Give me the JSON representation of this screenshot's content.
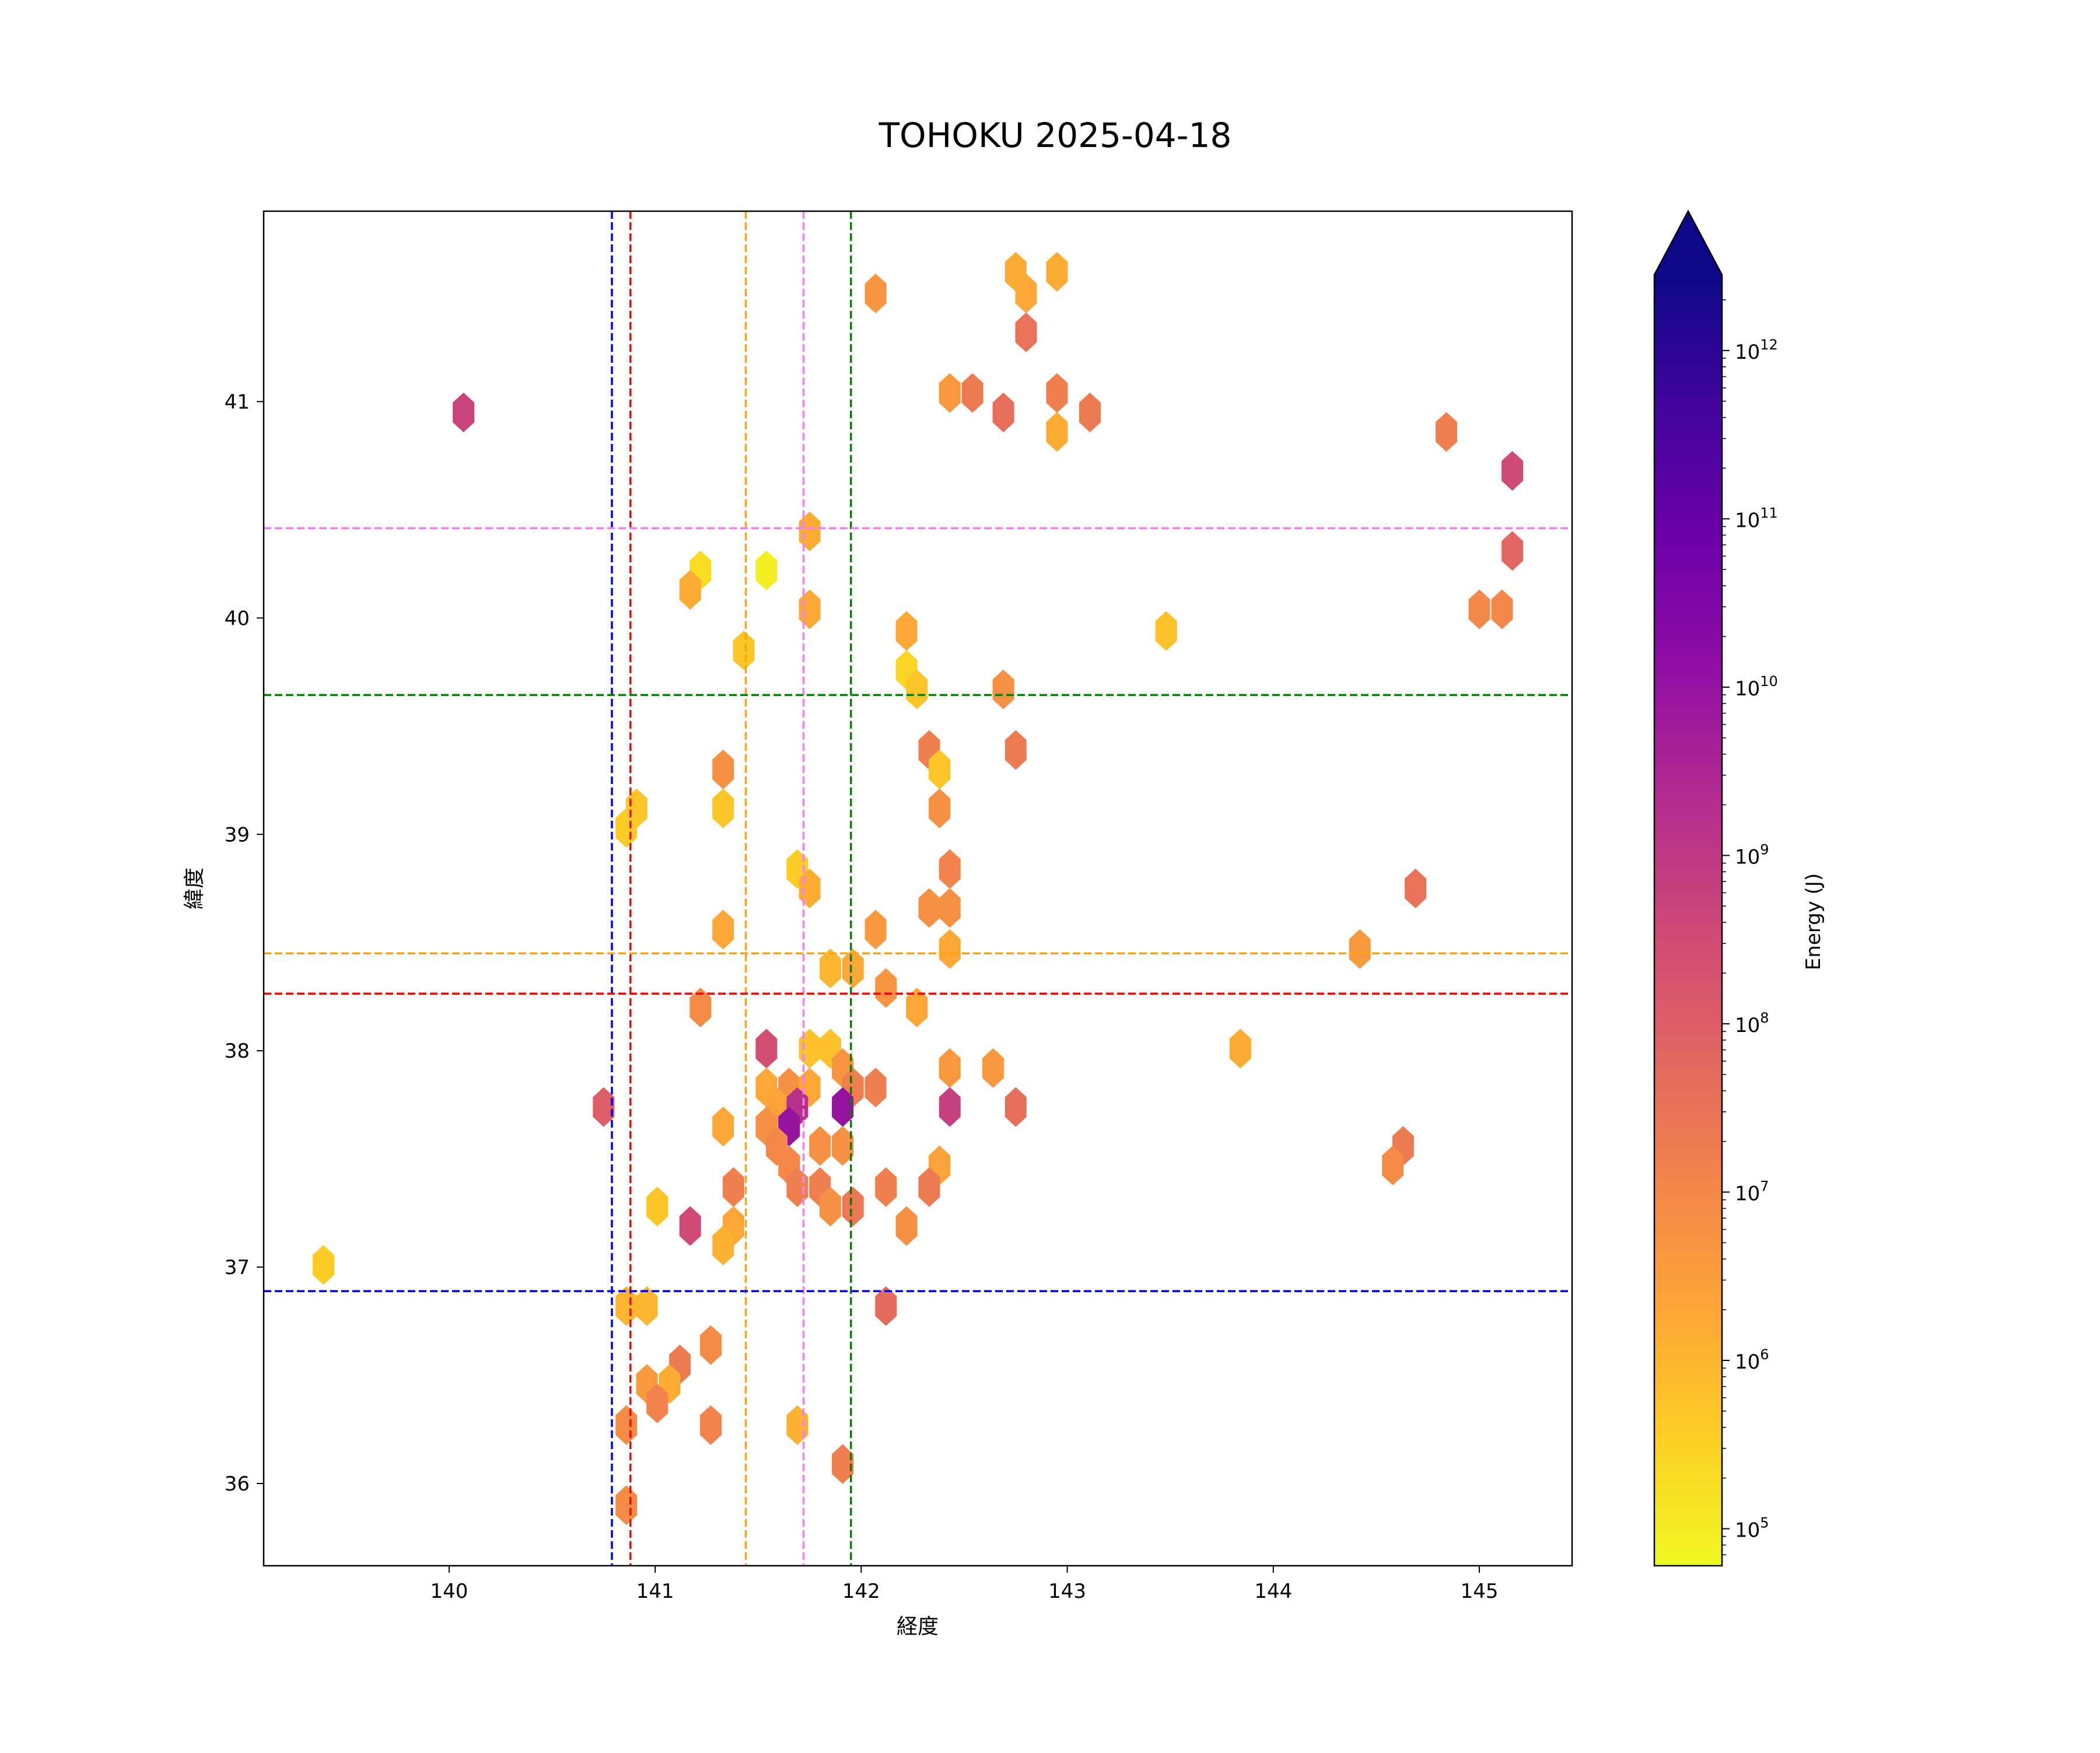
{
  "chart_data": {
    "type": "hexbin",
    "title": "TOHOKU 2025-04-18",
    "xlabel": "経度",
    "ylabel": "緯度",
    "xlim": [
      139.1,
      145.45
    ],
    "ylim": [
      35.62,
      41.88
    ],
    "xticks": [
      140,
      141,
      142,
      143,
      144,
      145
    ],
    "yticks": [
      36,
      37,
      38,
      39,
      40,
      41
    ],
    "grid": false,
    "colormap": "plasma_r",
    "colorbar": {
      "label": "Energy (J)",
      "scale": "log",
      "range_log10": [
        4.78,
        12.45
      ],
      "extend": "max",
      "tick_exponents": [
        5,
        6,
        7,
        8,
        9,
        10,
        11,
        12
      ],
      "tick_base": "10"
    },
    "reference_lines": {
      "vertical": [
        {
          "x": 140.79,
          "color": "#0000ff"
        },
        {
          "x": 140.88,
          "color": "#ff0000"
        },
        {
          "x": 141.44,
          "color": "#ffa500"
        },
        {
          "x": 141.72,
          "color": "#ee82ee"
        },
        {
          "x": 141.95,
          "color": "#008000"
        }
      ],
      "horizontal": [
        {
          "y": 40.415,
          "color": "#ee82ee"
        },
        {
          "y": 39.644,
          "color": "#008000"
        },
        {
          "y": 38.45,
          "color": "#ffa500"
        },
        {
          "y": 38.264,
          "color": "#ff0000"
        },
        {
          "y": 36.889,
          "color": "#0000ff"
        }
      ]
    },
    "bins_lon_lat_log10E": [
      [
        140.07,
        40.95,
        8.7
      ],
      [
        142.07,
        41.5,
        6.7
      ],
      [
        142.75,
        41.6,
        6.2
      ],
      [
        142.95,
        41.6,
        6.2
      ],
      [
        142.8,
        41.5,
        6.3
      ],
      [
        142.8,
        41.32,
        7.5
      ],
      [
        142.43,
        41.04,
        6.6
      ],
      [
        142.54,
        41.04,
        7.3
      ],
      [
        142.69,
        40.95,
        7.6
      ],
      [
        142.95,
        41.04,
        7.2
      ],
      [
        143.11,
        40.95,
        7.3
      ],
      [
        142.95,
        40.86,
        6.2
      ],
      [
        144.84,
        40.86,
        7.2
      ],
      [
        145.16,
        40.68,
        8.5
      ],
      [
        145.16,
        40.31,
        7.8
      ],
      [
        145.0,
        40.04,
        7.0
      ],
      [
        145.11,
        40.04,
        7.0
      ],
      [
        141.75,
        40.4,
        6.2
      ],
      [
        141.22,
        40.22,
        5.3
      ],
      [
        141.54,
        40.22,
        5.0
      ],
      [
        141.17,
        40.13,
        6.2
      ],
      [
        141.75,
        40.04,
        6.3
      ],
      [
        142.22,
        39.94,
        6.3
      ],
      [
        143.48,
        39.94,
        5.8
      ],
      [
        141.43,
        39.85,
        5.7
      ],
      [
        142.22,
        39.76,
        5.4
      ],
      [
        142.27,
        39.67,
        5.7
      ],
      [
        142.69,
        39.67,
        6.8
      ],
      [
        142.33,
        39.39,
        7.2
      ],
      [
        142.75,
        39.39,
        7.3
      ],
      [
        141.33,
        39.3,
        6.8
      ],
      [
        142.38,
        39.3,
        5.7
      ],
      [
        140.91,
        39.12,
        5.7
      ],
      [
        141.33,
        39.12,
        5.7
      ],
      [
        142.38,
        39.12,
        6.8
      ],
      [
        140.86,
        39.03,
        5.6
      ],
      [
        141.69,
        38.84,
        5.6
      ],
      [
        142.43,
        38.84,
        7.1
      ],
      [
        141.75,
        38.75,
        6.2
      ],
      [
        144.69,
        38.75,
        7.5
      ],
      [
        142.33,
        38.66,
        6.8
      ],
      [
        142.43,
        38.66,
        6.8
      ],
      [
        141.33,
        38.56,
        6.3
      ],
      [
        142.07,
        38.56,
        6.6
      ],
      [
        142.43,
        38.47,
        6.3
      ],
      [
        144.42,
        38.47,
        6.6
      ],
      [
        141.85,
        38.38,
        6.0
      ],
      [
        141.96,
        38.38,
        6.3
      ],
      [
        142.12,
        38.29,
        6.7
      ],
      [
        141.22,
        38.2,
        6.9
      ],
      [
        142.27,
        38.2,
        6.3
      ],
      [
        141.54,
        38.01,
        8.4
      ],
      [
        141.75,
        38.01,
        5.8
      ],
      [
        141.85,
        38.01,
        5.8
      ],
      [
        143.84,
        38.01,
        6.2
      ],
      [
        141.91,
        37.92,
        6.7
      ],
      [
        142.43,
        37.92,
        6.6
      ],
      [
        142.64,
        37.92,
        6.6
      ],
      [
        141.54,
        37.83,
        6.3
      ],
      [
        141.65,
        37.83,
        6.8
      ],
      [
        141.75,
        37.83,
        6.3
      ],
      [
        141.96,
        37.83,
        7.2
      ],
      [
        142.07,
        37.83,
        7.2
      ],
      [
        140.75,
        37.74,
        8.0
      ],
      [
        141.59,
        37.74,
        6.4
      ],
      [
        141.69,
        37.74,
        9.2
      ],
      [
        141.91,
        37.74,
        10.0
      ],
      [
        142.43,
        37.74,
        8.8
      ],
      [
        142.75,
        37.74,
        7.6
      ],
      [
        141.33,
        37.65,
        6.3
      ],
      [
        141.54,
        37.65,
        6.8
      ],
      [
        141.65,
        37.65,
        10.0
      ],
      [
        141.59,
        37.56,
        7.0
      ],
      [
        141.8,
        37.56,
        6.8
      ],
      [
        141.91,
        37.56,
        6.8
      ],
      [
        144.63,
        37.56,
        7.3
      ],
      [
        141.65,
        37.47,
        7.0
      ],
      [
        142.38,
        37.47,
        6.4
      ],
      [
        144.58,
        37.47,
        6.9
      ],
      [
        141.38,
        37.37,
        7.2
      ],
      [
        141.69,
        37.37,
        7.2
      ],
      [
        141.8,
        37.37,
        7.2
      ],
      [
        142.12,
        37.37,
        7.2
      ],
      [
        142.33,
        37.37,
        7.3
      ],
      [
        141.01,
        37.28,
        5.7
      ],
      [
        141.85,
        37.28,
        6.8
      ],
      [
        141.96,
        37.28,
        7.4
      ],
      [
        141.17,
        37.19,
        8.5
      ],
      [
        141.38,
        37.19,
        6.3
      ],
      [
        142.22,
        37.19,
        6.8
      ],
      [
        141.33,
        37.1,
        6.1
      ],
      [
        139.39,
        37.01,
        5.6
      ],
      [
        140.86,
        36.82,
        6.0
      ],
      [
        140.96,
        36.82,
        6.0
      ],
      [
        142.12,
        36.82,
        7.7
      ],
      [
        141.27,
        36.64,
        6.9
      ],
      [
        141.12,
        36.55,
        7.3
      ],
      [
        140.96,
        36.46,
        6.6
      ],
      [
        141.07,
        36.46,
        6.2
      ],
      [
        141.01,
        36.37,
        7.1
      ],
      [
        140.86,
        36.27,
        6.9
      ],
      [
        141.27,
        36.27,
        7.1
      ],
      [
        141.69,
        36.27,
        6.1
      ],
      [
        141.91,
        36.09,
        7.2
      ],
      [
        140.86,
        35.9,
        6.9
      ]
    ]
  }
}
